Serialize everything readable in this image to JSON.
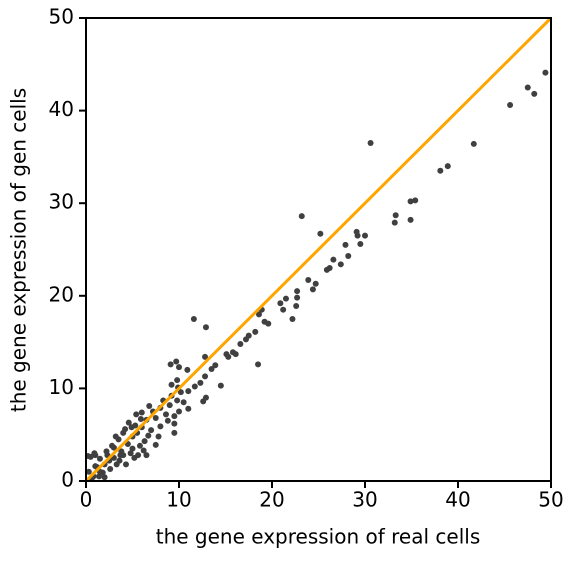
{
  "chart_data": {
    "type": "scatter",
    "x_label": "the gene expression of real cells",
    "y_label": "the gene expression of gen cells",
    "xlim": [
      0,
      50
    ],
    "ylim": [
      0,
      50
    ],
    "xticks": [
      0,
      10,
      20,
      30,
      40,
      50
    ],
    "yticks": [
      0,
      10,
      20,
      30,
      40,
      50
    ],
    "color": "#404040",
    "reference_line": {
      "x": [
        0,
        50
      ],
      "y": [
        0,
        50
      ],
      "color": "#ffa500"
    },
    "x": [
      49.4,
      47.5,
      48.2,
      45.6,
      41.7,
      38.9,
      38.1,
      35.4,
      34.9,
      34.9,
      33.2,
      33.3,
      30.6,
      29.1,
      29.2,
      30.0,
      29.5,
      27.9,
      28.2,
      27.4,
      26.6,
      26.2,
      25.9,
      25.2,
      23.2,
      24.7,
      24.4,
      23.9,
      22.7,
      22.7,
      22.6,
      21.5,
      20.9,
      21.2,
      22.2,
      18.9,
      18.6,
      19.2,
      19.6,
      18.2,
      17.5,
      17.2,
      16.6,
      15.8,
      16.1,
      15.1,
      15.3,
      18.5,
      11.6,
      12.9,
      14.5,
      12.8,
      9.7,
      10.0,
      9.1,
      10.9,
      13.5,
      13.9,
      12.8,
      12.3,
      11.7,
      11.0,
      12.6,
      12.9,
      9.2,
      9.8,
      0.2,
      0.5,
      1.0,
      1.5,
      0.3,
      0.8,
      1.2,
      2.0,
      2.2,
      2.5,
      3.0,
      3.0,
      3.3,
      3.5,
      3.8,
      4.0,
      4.2,
      4.5,
      4.6,
      5.0,
      5.0,
      5.3,
      5.5,
      5.6,
      6.0,
      6.0,
      6.3,
      6.5,
      6.8,
      7.0,
      7.2,
      7.5,
      7.5,
      8.0,
      8.0,
      8.3,
      8.6,
      9.0,
      9.2,
      9.5,
      9.5,
      9.8,
      10.0,
      10.2,
      1.8,
      2.6,
      3.6,
      4.8,
      5.8,
      6.7,
      0.6,
      1.0,
      1.5,
      2.8,
      4.0,
      4.3,
      5.2,
      6.2,
      3.2,
      2.0,
      8.8,
      7.8,
      6.5,
      5.4,
      9.9,
      11.0,
      9.5,
      10.5,
      2.3,
      3.7,
      0.9,
      1.4,
      4.9,
      5.9
    ],
    "values": [
      44.1,
      42.5,
      41.8,
      40.6,
      36.4,
      34.0,
      33.5,
      30.3,
      30.2,
      28.2,
      27.9,
      28.7,
      36.5,
      26.9,
      26.5,
      26.5,
      25.6,
      25.5,
      24.3,
      23.4,
      23.9,
      23.0,
      22.8,
      26.7,
      28.6,
      21.3,
      20.7,
      21.7,
      20.5,
      19.8,
      18.9,
      19.7,
      19.2,
      18.5,
      17.5,
      18.5,
      18.0,
      17.2,
      17.0,
      16.1,
      15.7,
      15.3,
      14.8,
      13.9,
      13.7,
      13.7,
      13.4,
      12.6,
      17.5,
      16.6,
      10.3,
      13.4,
      12.9,
      12.3,
      12.6,
      12.0,
      12.1,
      12.5,
      11.3,
      10.6,
      10.2,
      9.7,
      8.6,
      9.0,
      10.4,
      10.9,
      2.7,
      2.6,
      2.8,
      2.4,
      1.0,
      0.5,
      1.5,
      1.8,
      3.2,
      2.2,
      3.6,
      2.5,
      1.8,
      4.5,
      3.2,
      2.8,
      5.6,
      4.0,
      6.3,
      4.8,
      3.5,
      6.0,
      5.2,
      2.8,
      5.8,
      7.4,
      4.3,
      6.6,
      8.1,
      5.5,
      7.5,
      3.9,
      6.8,
      7.9,
      5.9,
      8.7,
      7.2,
      8.2,
      9.2,
      7.0,
      5.2,
      8.7,
      7.5,
      9.6,
      0.9,
      1.3,
      2.2,
      3.0,
      3.8,
      4.9,
      0.2,
      1.6,
      1.0,
      3.8,
      5.2,
      1.8,
      2.5,
      3.3,
      4.8,
      0.4,
      6.5,
      4.8,
      2.8,
      7.2,
      10.1,
      7.8,
      6.2,
      8.5,
      2.8,
      2.8,
      3.0,
      0.5,
      5.8,
      6.7
    ]
  }
}
